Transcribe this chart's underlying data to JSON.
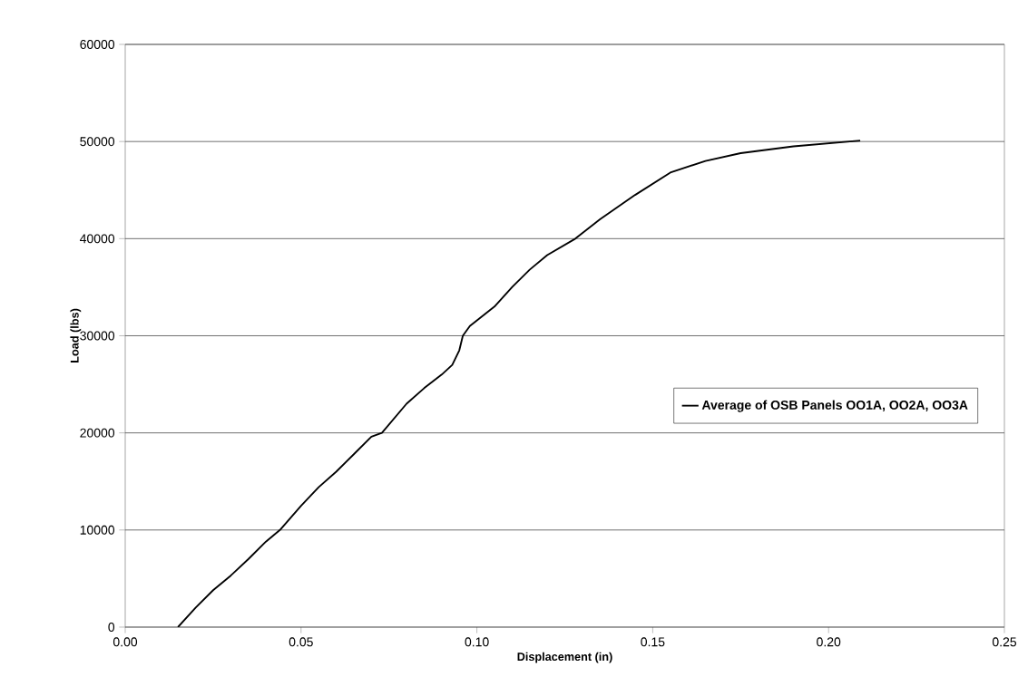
{
  "chart_data": {
    "type": "line",
    "xlabel": "Displacement (in)",
    "ylabel": "Load (lbs)",
    "xlim": [
      0,
      0.25
    ],
    "ylim": [
      0,
      60000
    ],
    "xticks": [
      {
        "value": 0,
        "label": "0.00"
      },
      {
        "value": 0.05,
        "label": "0.05"
      },
      {
        "value": 0.1,
        "label": "0.10"
      },
      {
        "value": 0.15,
        "label": "0.15"
      },
      {
        "value": 0.2,
        "label": "0.20"
      },
      {
        "value": 0.25,
        "label": "0.25"
      }
    ],
    "yticks": [
      0,
      10000,
      20000,
      30000,
      40000,
      50000,
      60000
    ],
    "grid": "y",
    "legend": "right",
    "marker": "none",
    "line_style": "solid",
    "series": [
      {
        "name": "Average of OSB Panels OO1A, OO2A, OO3A",
        "color": "#000000",
        "x": [
          0.015,
          0.02,
          0.025,
          0.03,
          0.035,
          0.04,
          0.044,
          0.05,
          0.055,
          0.06,
          0.065,
          0.07,
          0.073,
          0.08,
          0.085,
          0.09,
          0.093,
          0.095,
          0.096,
          0.098,
          0.105,
          0.11,
          0.115,
          0.12,
          0.128,
          0.135,
          0.145,
          0.155,
          0.165,
          0.175,
          0.19,
          0.209
        ],
        "values": [
          0,
          2000,
          3800,
          5300,
          7000,
          8800,
          10000,
          12500,
          14400,
          16000,
          17800,
          19600,
          20000,
          23000,
          24600,
          26000,
          27000,
          28500,
          30000,
          31000,
          33000,
          35000,
          36800,
          38300,
          40000,
          42000,
          44500,
          46800,
          48000,
          48800,
          49500,
          50100
        ]
      }
    ]
  }
}
